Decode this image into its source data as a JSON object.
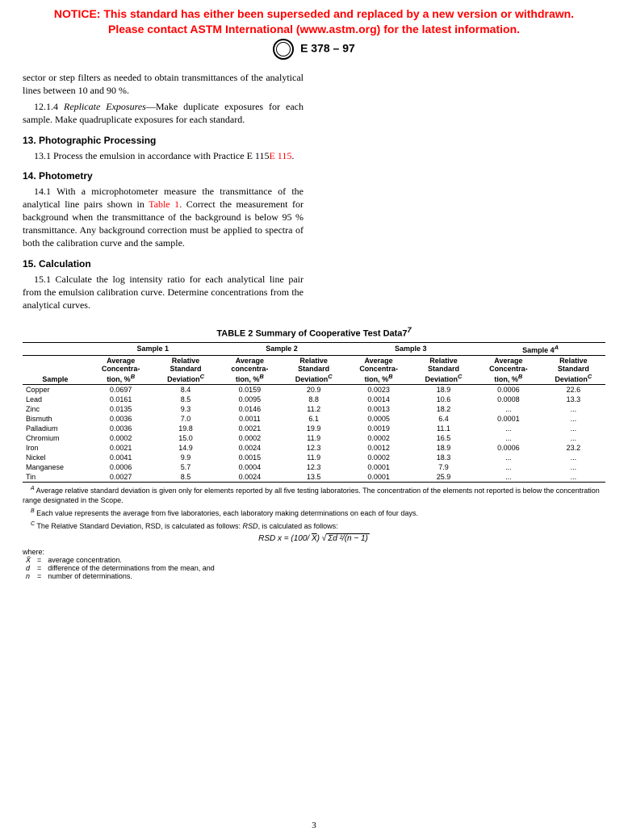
{
  "notice": {
    "line1": "NOTICE: This standard has either been superseded and replaced by a new version or withdrawn.",
    "line2": "Please contact ASTM International (www.astm.org) for the latest information.",
    "color": "#ff0000"
  },
  "header": {
    "designation": "E 378 – 97"
  },
  "body": {
    "p1": "sector or step filters as needed to obtain transmittances of the analytical lines between 10 and 90 %.",
    "p2_label": "12.1.4",
    "p2_title": "Replicate Exposures",
    "p2_text": "—Make duplicate exposures for each sample. Make quadruplicate exposures for each standard.",
    "s13_head": "13. Photographic Processing",
    "s13_text_a": "13.1 Process the emulsion in accordance with Practice E 115",
    "s13_link": "E 115",
    "s13_text_b": ".",
    "s14_head": "14. Photometry",
    "s14_text_a": "14.1 With a microphotometer measure the transmittance of the analytical line pairs shown in ",
    "s14_link": "Table 1",
    "s14_text_b": ". Correct the measurement for background when the transmittance of the background is below 95 % transmittance. Any background correction must be applied to spectra of both the calibration curve and the sample.",
    "s15_head": "15. Calculation",
    "s15_text": "15.1 Calculate the log intensity ratio for each analytical line pair from the emulsion calibration curve. Determine concentrations from the analytical curves."
  },
  "table": {
    "title": "TABLE 2  Summary of Cooperative Test Data7",
    "sup7": "7",
    "groups": [
      "Sample 1",
      "Sample 2",
      "Sample 3",
      "Sample 4"
    ],
    "sup_s4": "A",
    "col_sample": "Sample",
    "col_avg_l1": "Average",
    "col_avg_l2": "Concentra-",
    "col_avg_l3": "tion, %",
    "col_avg2_l2": "concentra-",
    "col_rsd_l1": "Relative",
    "col_rsd_l2": "Standard",
    "col_rsd_l3": "Deviation",
    "sup_B": "B",
    "sup_C": "C",
    "rows": [
      {
        "g": 0,
        "name": "Copper",
        "v": [
          "0.0697",
          "8.4",
          "0.0159",
          "20.9",
          "0.0023",
          "18.9",
          "0.0006",
          "22.6"
        ]
      },
      {
        "g": 0,
        "name": "Lead",
        "v": [
          "0.0161",
          "8.5",
          "0.0095",
          "8.8",
          "0.0014",
          "10.6",
          "0.0008",
          "13.3"
        ]
      },
      {
        "g": 1,
        "name": "Zinc",
        "v": [
          "0.0135",
          "9.3",
          "0.0146",
          "11.2",
          "0.0013",
          "18.2",
          "...",
          "..."
        ]
      },
      {
        "g": 1,
        "name": "Bismuth",
        "v": [
          "0.0036",
          "7.0",
          "0.0011",
          "6.1",
          "0.0005",
          "6.4",
          "0.0001",
          "..."
        ]
      },
      {
        "g": 2,
        "name": "Palladium",
        "v": [
          "0.0036",
          "19.8",
          "0.0021",
          "19.9",
          "0.0019",
          "11.1",
          "...",
          "..."
        ]
      },
      {
        "g": 2,
        "name": "Chromium",
        "v": [
          "0.0002",
          "15.0",
          "0.0002",
          "11.9",
          "0.0002",
          "16.5",
          "...",
          "..."
        ]
      },
      {
        "g": 2,
        "name": "Iron",
        "v": [
          "0.0021",
          "14.9",
          "0.0024",
          "12.3",
          "0.0012",
          "18.9",
          "0.0006",
          "23.2"
        ]
      },
      {
        "g": 2,
        "name": "Nickel",
        "v": [
          "0.0041",
          "9.9",
          "0.0015",
          "11.9",
          "0.0002",
          "18.3",
          "...",
          "..."
        ]
      },
      {
        "g": 3,
        "name": "Manganese",
        "v": [
          "0.0006",
          "5.7",
          "0.0004",
          "12.3",
          "0.0001",
          "7.9",
          "...",
          "..."
        ]
      },
      {
        "g": 3,
        "name": "Tin",
        "v": [
          "0.0027",
          "8.5",
          "0.0024",
          "13.5",
          "0.0001",
          "25.9",
          "...",
          "..."
        ]
      }
    ]
  },
  "footnotes": {
    "A": " Average relative standard deviation is given only for elements reported by all five testing laboratories. The concentration of the elements not reported is below the concentration range designated in the Scope.",
    "B": " Each value represents the average from five laboratories, each laboratory making determinations on each of four days.",
    "C": " The Relative Standard Deviation, RSD, is calculated as follows:"
  },
  "formula": {
    "lhs": "RSD x = (100/ ",
    "xbar": "X",
    "mid": ") ",
    "root": "√",
    "under": "Σd ²/(n − 1)"
  },
  "where": {
    "label": "where:",
    "rows": [
      {
        "sym": "X̄",
        "def": "average concentration."
      },
      {
        "sym": "d",
        "def": "difference of the determinations from the mean, and"
      },
      {
        "sym": "n",
        "def": "number of determinations."
      }
    ]
  },
  "page_number": "3"
}
